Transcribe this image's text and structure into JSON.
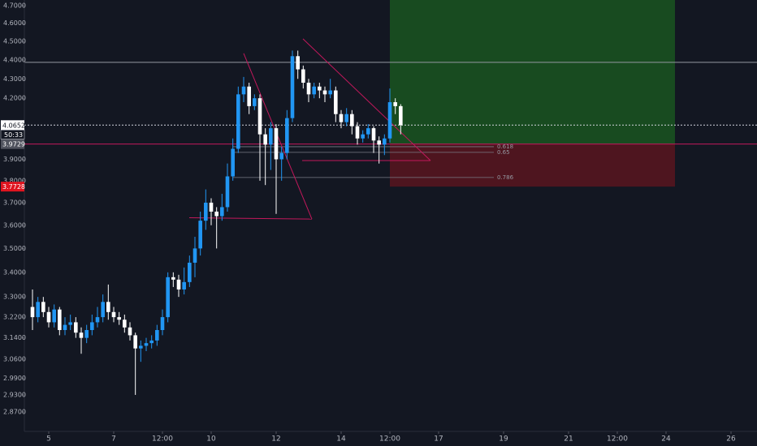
{
  "chart_data": {
    "type": "candlestick",
    "background": "#131722",
    "up_color": "#2196f3",
    "down_color": "#ffffff",
    "log_y": true,
    "x": [
      4.5,
      4.667,
      4.833,
      5,
      5.167,
      5.333,
      5.5,
      5.667,
      5.833,
      6,
      6.167,
      6.333,
      6.5,
      6.667,
      6.833,
      7,
      7.167,
      7.333,
      7.5,
      7.667,
      7.833,
      8,
      8.167,
      8.333,
      8.5,
      8.667,
      8.833,
      9,
      9.167,
      9.333,
      9.5,
      9.667,
      9.833,
      10,
      10.167,
      10.333,
      10.5,
      10.667,
      10.833,
      11,
      11.167,
      11.333,
      11.5,
      11.667,
      11.833,
      12,
      12.167,
      12.333,
      12.5,
      12.667,
      12.833,
      13,
      13.167,
      13.333,
      13.5,
      13.667,
      13.833,
      14,
      14.167,
      14.333,
      14.5,
      14.667,
      14.833,
      15,
      15.167,
      15.333,
      15.5,
      15.667,
      15.833
    ],
    "open": [
      3.26,
      3.22,
      3.28,
      3.24,
      3.2,
      3.25,
      3.17,
      3.19,
      3.2,
      3.16,
      3.14,
      3.17,
      3.2,
      3.22,
      3.28,
      3.24,
      3.22,
      3.21,
      3.18,
      3.15,
      3.1,
      3.11,
      3.12,
      3.13,
      3.17,
      3.22,
      3.38,
      3.37,
      3.33,
      3.36,
      3.44,
      3.5,
      3.62,
      3.7,
      3.66,
      3.64,
      3.68,
      3.82,
      3.95,
      4.22,
      4.26,
      4.16,
      4.2,
      4.02,
      3.97,
      4.05,
      3.9,
      3.93,
      4.1,
      4.42,
      4.35,
      4.28,
      4.22,
      4.26,
      4.24,
      4.22,
      4.24,
      4.12,
      4.08,
      4.12,
      4.06,
      4.0,
      4.02,
      4.05,
      3.99,
      3.97,
      4.0,
      4.18,
      4.16
    ],
    "high": [
      3.33,
      3.3,
      3.3,
      3.26,
      3.27,
      3.26,
      3.22,
      3.23,
      3.22,
      3.18,
      3.19,
      3.23,
      3.26,
      3.31,
      3.35,
      3.26,
      3.24,
      3.23,
      3.2,
      3.16,
      3.13,
      3.14,
      3.15,
      3.19,
      3.25,
      3.4,
      3.4,
      3.39,
      3.42,
      3.47,
      3.55,
      3.66,
      3.76,
      3.72,
      3.68,
      3.74,
      3.88,
      4.0,
      4.26,
      4.31,
      4.28,
      4.22,
      4.22,
      4.05,
      4.08,
      4.07,
      3.96,
      4.14,
      4.45,
      4.45,
      4.37,
      4.3,
      4.28,
      4.28,
      4.26,
      4.3,
      4.26,
      4.14,
      4.15,
      4.14,
      4.08,
      4.04,
      4.07,
      4.06,
      4.01,
      4.02,
      4.25,
      4.2,
      4.17
    ],
    "low": [
      3.17,
      3.2,
      3.22,
      3.18,
      3.18,
      3.15,
      3.15,
      3.17,
      3.14,
      3.08,
      3.12,
      3.15,
      3.18,
      3.2,
      3.21,
      3.2,
      3.19,
      3.16,
      3.13,
      2.93,
      3.05,
      3.09,
      3.1,
      3.11,
      3.15,
      3.2,
      3.34,
      3.3,
      3.31,
      3.34,
      3.38,
      3.47,
      3.58,
      3.6,
      3.5,
      3.62,
      3.66,
      3.8,
      3.93,
      4.18,
      4.12,
      4.14,
      3.8,
      3.78,
      3.85,
      3.65,
      3.8,
      3.9,
      4.08,
      4.3,
      4.25,
      4.18,
      4.2,
      4.2,
      4.18,
      4.2,
      4.08,
      4.05,
      4.06,
      4.02,
      3.97,
      3.98,
      4.0,
      3.93,
      3.88,
      3.92,
      3.98,
      4.12,
      4.02
    ],
    "close": [
      3.22,
      3.28,
      3.24,
      3.2,
      3.25,
      3.17,
      3.19,
      3.2,
      3.16,
      3.14,
      3.17,
      3.2,
      3.22,
      3.28,
      3.24,
      3.22,
      3.21,
      3.18,
      3.15,
      3.1,
      3.11,
      3.12,
      3.13,
      3.17,
      3.22,
      3.38,
      3.37,
      3.33,
      3.36,
      3.44,
      3.5,
      3.62,
      3.7,
      3.66,
      3.64,
      3.68,
      3.82,
      3.95,
      4.22,
      4.26,
      4.16,
      4.2,
      4.02,
      3.97,
      4.05,
      3.9,
      3.93,
      4.1,
      4.42,
      4.35,
      4.28,
      4.22,
      4.26,
      4.24,
      4.22,
      4.24,
      4.12,
      4.08,
      4.12,
      4.06,
      4.0,
      4.02,
      4.05,
      3.99,
      3.97,
      4.0,
      4.18,
      4.16,
      4.0652
    ],
    "xlim": [
      4.25,
      26.8
    ],
    "xticks": [
      5,
      7,
      {
        "value": 8.5,
        "label": "12:00"
      },
      10,
      12,
      14,
      {
        "value": 15.5,
        "label": "12:00"
      },
      17,
      19,
      21,
      {
        "value": 22.5,
        "label": "12:00"
      },
      24,
      26
    ],
    "ylim": [
      2.803,
      4.732
    ],
    "yticks": [
      {
        "value": 4.7,
        "label": "4.7000"
      },
      {
        "value": 4.6,
        "label": "4.6000"
      },
      {
        "value": 4.5,
        "label": "4.5000"
      },
      {
        "value": 4.4,
        "label": "4.4000"
      },
      {
        "value": 4.3,
        "label": "4.3000"
      },
      {
        "value": 4.2,
        "label": "4.2000"
      },
      {
        "value": 3.9,
        "label": "3.9000"
      },
      {
        "value": 3.8,
        "label": "3.8000"
      },
      {
        "value": 3.7,
        "label": "3.7000"
      },
      {
        "value": 3.6,
        "label": "3.6000"
      },
      {
        "value": 3.5,
        "label": "3.5000"
      },
      {
        "value": 3.4,
        "label": "3.4000"
      },
      {
        "value": 3.3,
        "label": "3.3000"
      },
      {
        "value": 3.22,
        "label": "3.2200"
      },
      {
        "value": 3.14,
        "label": "3.1400"
      },
      {
        "value": 3.06,
        "label": "3.0600"
      },
      {
        "value": 2.99,
        "label": "2.9900"
      },
      {
        "value": 2.93,
        "label": "2.9300"
      },
      {
        "value": 2.87,
        "label": "2.8700"
      }
    ],
    "horizontal_lines": [
      {
        "value": 4.387,
        "color": "#9598a1",
        "dashed": false
      },
      {
        "value": 4.0652,
        "color": "#d1d4dc",
        "dashed": true
      },
      {
        "value": 3.9729,
        "color": "#c2185b",
        "dashed": false
      }
    ],
    "axis_labels": [
      {
        "value": 4.0652,
        "label": "4.0652",
        "bg": "#ffffff",
        "fg": "#131722"
      },
      {
        "value": 3.9729,
        "label": "3.9729",
        "bg": "#50535e",
        "fg": "#ffffff"
      },
      {
        "value": 3.7728,
        "label": "3.7728",
        "bg": "#e0141f",
        "fg": "#ffffff"
      }
    ],
    "countdown": "50:33",
    "position": {
      "x": [
        15.5,
        24.275
      ],
      "entry": 3.9729,
      "target": 4.75,
      "stop": 3.7728,
      "profit_color": "rgba(27,94,32,0.75)",
      "loss_color": "rgba(110,20,30,0.65)"
    },
    "fib_x": [
      10.675,
      18.7
    ],
    "fib_levels": [
      {
        "value": 3.96,
        "label": "0.618"
      },
      {
        "value": 3.933,
        "label": "0.65"
      },
      {
        "value": 3.815,
        "label": "0.786"
      }
    ],
    "trend_color": "#c2185b",
    "trend_lines": [
      {
        "x": [
          11,
          13.1
        ],
        "y": [
          4.435,
          3.627
        ]
      },
      {
        "x": [
          9.325,
          13.1
        ],
        "y": [
          3.633,
          3.627
        ]
      },
      {
        "x": [
          12.825,
          16.75
        ],
        "y": [
          4.514,
          3.894
        ]
      },
      {
        "x": [
          12.8,
          16.75
        ],
        "y": [
          3.894,
          3.894
        ]
      }
    ]
  }
}
